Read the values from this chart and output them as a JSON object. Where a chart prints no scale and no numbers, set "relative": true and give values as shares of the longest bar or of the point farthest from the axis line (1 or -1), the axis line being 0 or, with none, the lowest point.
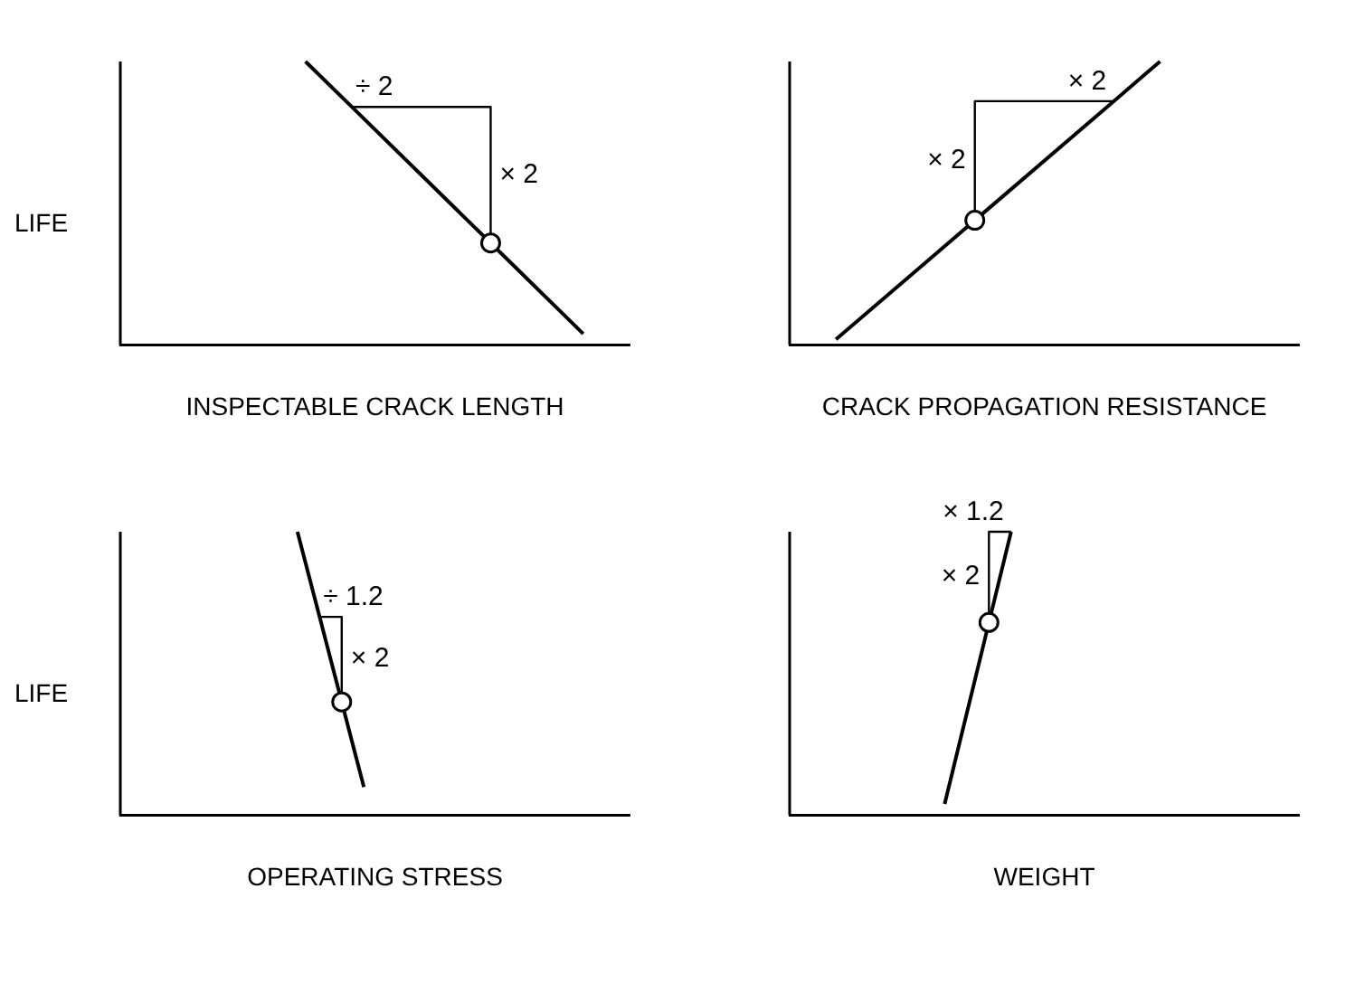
{
  "chart_data": [
    {
      "type": "line",
      "relative": true,
      "ylabel": "LIFE",
      "xlabel": "INSPECTABLE CRACK LENGTH",
      "annotations": [
        "÷ 2",
        "× 2"
      ],
      "categories": [
        null,
        null,
        null,
        null,
        null,
        null,
        null,
        null,
        null,
        null,
        null,
        null
      ],
      "series": [
        {
          "color": "#000000",
          "marker": "none",
          "values": [
            null,
            null,
            null,
            null,
            1.0,
            0.84,
            null,
            null,
            0.36,
            null,
            0.04,
            null
          ]
        },
        {
          "color": "#000000",
          "marker": "circle",
          "values": [
            null,
            null,
            null,
            null,
            null,
            null,
            null,
            null,
            0.36,
            null,
            null,
            null
          ]
        }
      ]
    },
    {
      "type": "line",
      "relative": true,
      "xlabel": "CRACK PROPAGATION RESISTANCE",
      "annotations": [
        "× 2",
        "× 2"
      ],
      "categories": [
        null,
        null,
        null,
        null,
        null,
        null,
        null,
        null,
        null,
        null,
        null,
        null
      ],
      "series": [
        {
          "color": "#000000",
          "marker": "none",
          "values": [
            null,
            0.02,
            null,
            null,
            0.44,
            null,
            null,
            0.86,
            1.0,
            null,
            null,
            null
          ]
        },
        {
          "color": "#000000",
          "marker": "circle",
          "values": [
            null,
            null,
            null,
            null,
            0.44,
            null,
            null,
            null,
            null,
            null,
            null,
            null
          ]
        }
      ]
    },
    {
      "type": "line",
      "relative": true,
      "ylabel": "LIFE",
      "xlabel": "OPERATING STRESS",
      "annotations": [
        "÷ 1.2",
        "× 2"
      ],
      "categories": [
        null,
        null,
        null,
        null,
        null,
        null,
        null,
        null,
        null,
        null,
        null,
        null,
        null,
        null,
        null,
        null,
        null,
        null,
        null,
        null,
        null,
        null,
        null,
        null
      ],
      "series": [
        {
          "color": "#000000",
          "marker": "none",
          "values": [
            null,
            null,
            null,
            null,
            null,
            null,
            null,
            null,
            1.0,
            0.7,
            0.4,
            0.1,
            null,
            null,
            null,
            null,
            null,
            null,
            null,
            null,
            null,
            null,
            null,
            null
          ]
        },
        {
          "color": "#000000",
          "marker": "circle",
          "values": [
            null,
            null,
            null,
            null,
            null,
            null,
            null,
            null,
            null,
            null,
            0.4,
            null,
            null,
            null,
            null,
            null,
            null,
            null,
            null,
            null,
            null,
            null,
            null,
            null
          ]
        }
      ]
    },
    {
      "type": "line",
      "relative": true,
      "xlabel": "WEIGHT",
      "annotations": [
        "× 1.2",
        "× 2"
      ],
      "categories": [
        null,
        null,
        null,
        null,
        null,
        null,
        null,
        null,
        null,
        null,
        null,
        null,
        null,
        null,
        null,
        null,
        null,
        null,
        null,
        null,
        null,
        null,
        null,
        null
      ],
      "series": [
        {
          "color": "#000000",
          "marker": "none",
          "values": [
            null,
            null,
            null,
            null,
            null,
            null,
            null,
            0.04,
            null,
            0.68,
            1.0,
            null,
            null,
            null,
            null,
            null,
            null,
            null,
            null,
            null,
            null,
            null,
            null,
            null
          ]
        },
        {
          "color": "#000000",
          "marker": "circle",
          "values": [
            null,
            null,
            null,
            null,
            null,
            null,
            null,
            null,
            null,
            0.68,
            null,
            null,
            null,
            null,
            null,
            null,
            null,
            null,
            null,
            null,
            null,
            null,
            null,
            null
          ]
        }
      ]
    }
  ]
}
